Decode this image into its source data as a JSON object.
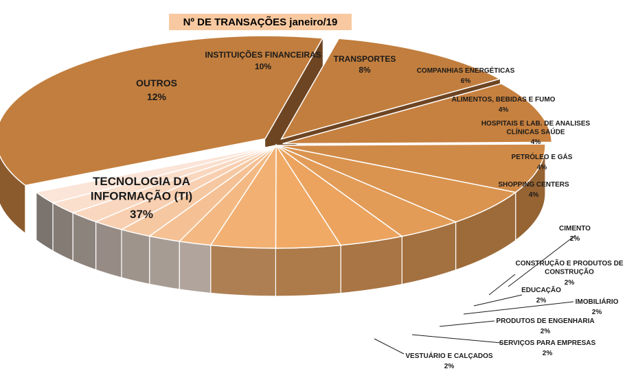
{
  "chart_data": {
    "type": "pie",
    "title": "Nº DE TRANSAÇÕES   janeiro/19",
    "slices": [
      {
        "label": "TECNOLOGIA DA INFORMAÇÃO (TI)",
        "value": 37,
        "value_label": "37%",
        "color": "#c27e3e"
      },
      {
        "label": "OUTROS",
        "value": 12,
        "value_label": "12%",
        "color": "#c27e3e"
      },
      {
        "label": "INSTITUIÇÕES FINANCEIRAS",
        "value": 10,
        "value_label": "10%",
        "color": "#c6803f"
      },
      {
        "label": "TRANSPORTES",
        "value": 8,
        "value_label": "8%",
        "color": "#d08a47"
      },
      {
        "label": "COMPANHIAS ENERGÉTICAS",
        "value": 6,
        "value_label": "6%",
        "color": "#da944f"
      },
      {
        "label": "ALIMENTOS, BEBIDAS E FUMO",
        "value": 4,
        "value_label": "4%",
        "color": "#e39c57"
      },
      {
        "label": "HOSPITAIS E LAB. DE ANALISES CLÍNICAS SAÚDE",
        "value": 4,
        "value_label": "4%",
        "color": "#eba35e"
      },
      {
        "label": "PETRÓLEO E GÁS",
        "value": 4,
        "value_label": "4%",
        "color": "#f0aa66"
      },
      {
        "label": "SHOPPING CENTERS",
        "value": 4,
        "value_label": "4%",
        "color": "#f2b073"
      },
      {
        "label": "CIMENTO",
        "value": 2,
        "value_label": "2%",
        "color": "#f4b982"
      },
      {
        "label": "CONSTRUÇÃO E PRODUTOS DE CONSTRUÇÃO",
        "value": 2,
        "value_label": "2%",
        "color": "#f5c093"
      },
      {
        "label": "EDUCAÇÃO",
        "value": 2,
        "value_label": "2%",
        "color": "#f6c8a2"
      },
      {
        "label": "IMOBILIÁRIO",
        "value": 2,
        "value_label": "2%",
        "color": "#f8cfb1"
      },
      {
        "label": "PRODUTOS DE ENGENHARIA",
        "value": 2,
        "value_label": "2%",
        "color": "#f9d7bf"
      },
      {
        "label": "SERVIÇOS PARA EMPRESAS",
        "value": 2,
        "value_label": "2%",
        "color": "#fadfcd"
      },
      {
        "label": "VESTUÁRIO E CALÇADOS",
        "value": 2,
        "value_label": "2%",
        "color": "#fbe5d8"
      }
    ]
  }
}
